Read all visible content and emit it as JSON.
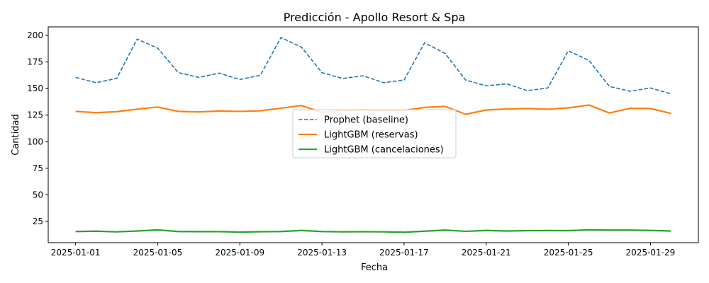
{
  "chart_data": {
    "type": "line",
    "title": "Predicción - Apollo Resort & Spa",
    "xlabel": "Fecha",
    "ylabel": "Cantidad",
    "x": [
      "2025-01-01",
      "2025-01-02",
      "2025-01-03",
      "2025-01-04",
      "2025-01-05",
      "2025-01-06",
      "2025-01-07",
      "2025-01-08",
      "2025-01-09",
      "2025-01-10",
      "2025-01-11",
      "2025-01-12",
      "2025-01-13",
      "2025-01-14",
      "2025-01-15",
      "2025-01-16",
      "2025-01-17",
      "2025-01-18",
      "2025-01-19",
      "2025-01-20",
      "2025-01-21",
      "2025-01-22",
      "2025-01-23",
      "2025-01-24",
      "2025-01-25",
      "2025-01-26",
      "2025-01-27",
      "2025-01-28",
      "2025-01-29",
      "2025-01-30"
    ],
    "xticks": [
      "2025-01-01",
      "2025-01-05",
      "2025-01-09",
      "2025-01-13",
      "2025-01-17",
      "2025-01-21",
      "2025-01-25",
      "2025-01-29"
    ],
    "xlim": [
      "2024-12-30T16:00",
      "2025-01-31T08:00"
    ],
    "ylim": [
      5,
      208
    ],
    "yticks": [
      25,
      50,
      75,
      100,
      125,
      150,
      175,
      200
    ],
    "grid": false,
    "legend_position": "center",
    "series": [
      {
        "name": "Prophet (baseline)",
        "color": "#1f77b4",
        "style": "dashed",
        "values": [
          160.5,
          155.5,
          159.5,
          196.5,
          188,
          165,
          160.5,
          164.5,
          158.5,
          162.5,
          198,
          189,
          165,
          159.5,
          162,
          155.5,
          158,
          193,
          183,
          158,
          152.5,
          154.5,
          148,
          150.5,
          185.5,
          176.5,
          152,
          147.5,
          150.5,
          145
        ]
      },
      {
        "name": "LightGBM (reservas)",
        "color": "#ff7f0e",
        "style": "solid",
        "values": [
          128.5,
          127.3,
          128.2,
          130.6,
          132.6,
          128.5,
          128,
          128.9,
          128.5,
          129,
          131.5,
          134,
          127.5,
          129.5,
          129.8,
          129.5,
          129.5,
          132.2,
          133.2,
          125.8,
          129.8,
          130.8,
          131.2,
          130.6,
          131.8,
          134.5,
          127,
          131.4,
          131.2,
          126.6
        ]
      },
      {
        "name": "LightGBM (cancelaciones)",
        "color": "#2ca02c",
        "style": "solid",
        "values": [
          15.5,
          15.8,
          15.2,
          16,
          17,
          15.5,
          15.4,
          15.4,
          15,
          15.3,
          15.5,
          16.5,
          15.5,
          15.2,
          15.3,
          15.2,
          14.8,
          15.8,
          16.8,
          15.7,
          16.5,
          16,
          16.3,
          16.4,
          16.3,
          17.1,
          16.8,
          16.8,
          16.5,
          16
        ]
      }
    ]
  }
}
